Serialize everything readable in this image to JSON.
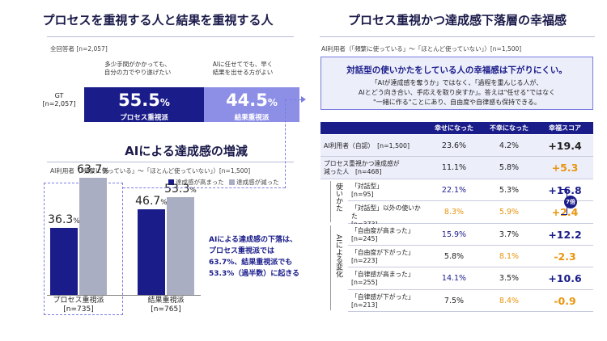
{
  "left": {
    "title": "プロセスを重視する人と結果を重視する人",
    "base": "全回答者 [n=2,057]",
    "caption_left": "多少手間がかかっても、\n自分の力でやり遂げたい",
    "caption_right": "AIに任せてでも、早く\n結果を出せる方がよい",
    "gt_label": "GT",
    "gt_n": "[n=2,057]",
    "seg1_value": "55.5",
    "seg1_unit": "%",
    "seg1_label": "プロセス重視派",
    "seg2_value": "44.5",
    "seg2_unit": "%",
    "seg2_label": "結果重視派",
    "colors": {
      "navy": "#1a1c8a",
      "light": "#8d8fe6",
      "gray": "#a9aec2"
    }
  },
  "mid": {
    "title": "AIによる達成感の増減",
    "base": "AI利用者（「頻繁に使っている」〜「ほとんど使っていない」）[n=1,500]",
    "legend_up": "達成感が高まった",
    "legend_down": "達成感が減った",
    "note": "AIによる達成感の下落は、\nプロセス重視派では\n63.7%、結果重視派でも\n53.3%（過半数）に起きる"
  },
  "chart_data": {
    "type": "bar",
    "categories": [
      "プロセス重視派\n[n=735]",
      "結果重視派\n[n=765]"
    ],
    "series": [
      {
        "name": "達成感が高まった",
        "values": [
          36.3,
          46.7
        ],
        "color": "#1a1c8a"
      },
      {
        "name": "達成感が減った",
        "values": [
          63.7,
          53.3
        ],
        "color": "#a9aec2"
      }
    ],
    "ylim": [
      0,
      70
    ],
    "unit": "%"
  },
  "right": {
    "title": "プロセス重視かつ達成感下落層の幸福感",
    "base": "AI利用者（「頻繁に使っている」〜「ほとんど使っていない」）[n=1,500]",
    "callout_title": "対話型の使いかたをしている人の幸福感は下がりにくい。",
    "callout_body": "「AIが達成感を奪うか」ではなく、「過程を重んじる人が、\nAIとどう向き合い、手応えを取り戻すか」。答えは\"任せる\"ではなく\n\"一緒に作る\"ことにあり、自由度や自律感も保持できる。",
    "headers": [
      "幸せになった",
      "不幸になった",
      "幸福スコア"
    ],
    "group1_label": "使いかた",
    "group2_label": "AIによる変化",
    "badge": "7倍",
    "rows": [
      {
        "label": "AI利用者（自認）",
        "n": "[n=1,500]",
        "happy": "23.6%",
        "unhappy": "4.2%",
        "score": "+19.4",
        "hc": "dark",
        "uc": "dark",
        "sc": "dark"
      },
      {
        "label": "プロセス重視かつ達成感が\n減った人",
        "n": "[n=468]",
        "happy": "11.1%",
        "unhappy": "5.8%",
        "score": "+5.3",
        "hc": "dark",
        "uc": "dark",
        "sc": "orange"
      },
      {
        "label": "「対話型」",
        "n": "[n=95]",
        "happy": "22.1%",
        "unhappy": "5.3%",
        "score": "+16.8",
        "hc": "blue",
        "uc": "dark",
        "sc": "blue"
      },
      {
        "label": "「対話型」以外の使いかた",
        "n": "[n=373]",
        "happy": "8.3%",
        "unhappy": "5.9%",
        "score": "+2.4",
        "hc": "orange",
        "uc": "orange",
        "sc": "orange"
      },
      {
        "label": "「自由度が高まった」",
        "n": "[n=245]",
        "happy": "15.9%",
        "unhappy": "3.7%",
        "score": "+12.2",
        "hc": "blue",
        "uc": "dark",
        "sc": "blue"
      },
      {
        "label": "「自由度が下がった」",
        "n": "[n=223]",
        "happy": "5.8%",
        "unhappy": "8.1%",
        "score": "-2.3",
        "hc": "dark",
        "uc": "orange",
        "sc": "orange"
      },
      {
        "label": "「自律感が高まった」",
        "n": "[n=255]",
        "happy": "14.1%",
        "unhappy": "3.5%",
        "score": "+10.6",
        "hc": "blue",
        "uc": "dark",
        "sc": "blue"
      },
      {
        "label": "「自律感が下がった」",
        "n": "[n=213]",
        "happy": "7.5%",
        "unhappy": "8.4%",
        "score": "-0.9",
        "hc": "dark",
        "uc": "orange",
        "sc": "orange"
      }
    ]
  }
}
